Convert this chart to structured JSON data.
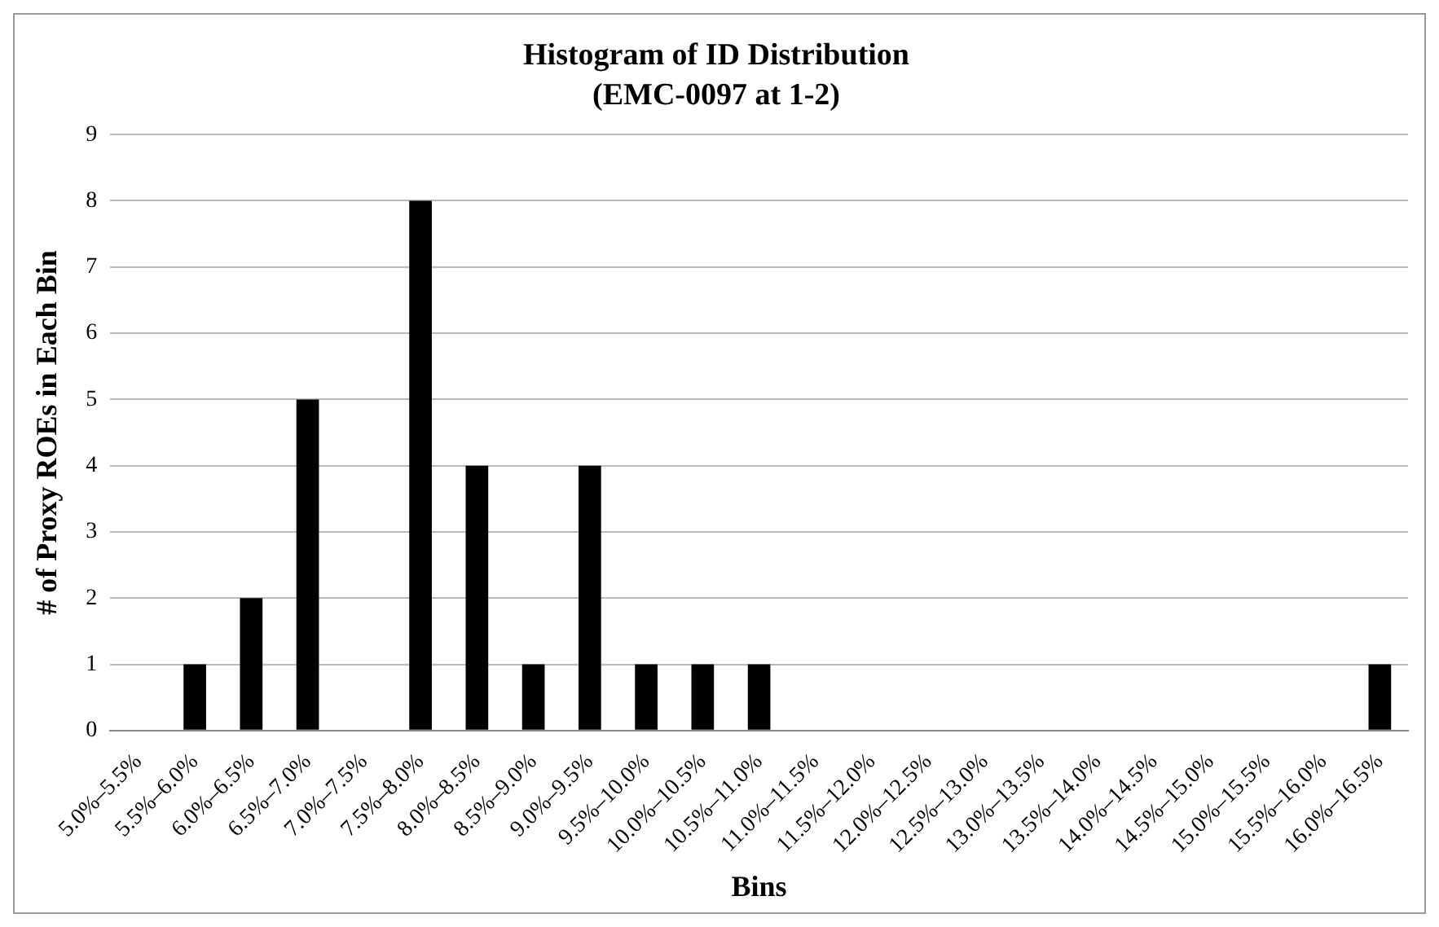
{
  "chart_data": {
    "type": "bar",
    "title": "Histogram of ID Distribution",
    "subtitle": "(EMC-0097 at 1-2)",
    "xlabel": "Bins",
    "ylabel": "# of Proxy ROEs in Each Bin",
    "categories": [
      "5.0%–5.5%",
      "5.5%–6.0%",
      "6.0%–6.5%",
      "6.5%–7.0%",
      "7.0%–7.5%",
      "7.5%–8.0%",
      "8.0%–8.5%",
      "8.5%–9.0%",
      "9.0%–9.5%",
      "9.5%–10.0%",
      "10.0%–10.5%",
      "10.5%–11.0%",
      "11.0%–11.5%",
      "11.5%–12.0%",
      "12.0%–12.5%",
      "12.5%–13.0%",
      "13.0%–13.5%",
      "13.5%–14.0%",
      "14.0%–14.5%",
      "14.5%–15.0%",
      "15.0%–15.5%",
      "15.5%–16.0%",
      "16.0%–16.5%"
    ],
    "values": [
      0,
      1,
      2,
      5,
      0,
      8,
      4,
      1,
      4,
      1,
      1,
      1,
      0,
      0,
      0,
      0,
      0,
      0,
      0,
      0,
      0,
      0,
      1
    ],
    "color": "#000000",
    "ylim": [
      0,
      9
    ],
    "yticks": [
      0,
      1,
      2,
      3,
      4,
      5,
      6,
      7,
      8,
      9
    ],
    "grid": "y",
    "legend": false
  }
}
